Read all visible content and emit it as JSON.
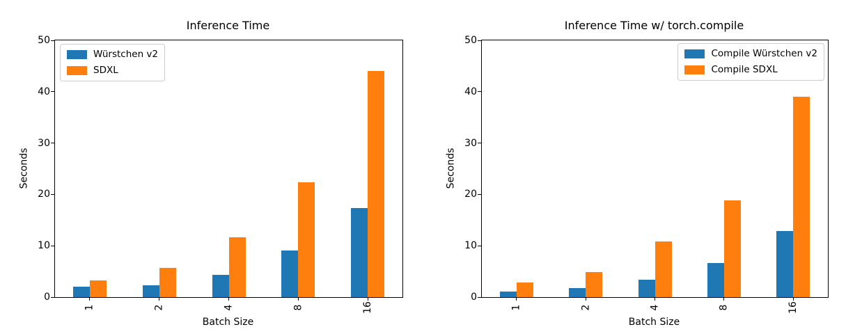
{
  "page": {
    "background": "#ffffff"
  },
  "chart_data": [
    {
      "type": "bar",
      "title": "Inference Time",
      "xlabel": "Batch Size",
      "ylabel": "Seconds",
      "categories": [
        "1",
        "2",
        "4",
        "8",
        "16"
      ],
      "series": [
        {
          "name": "Würstchen v2",
          "color": "#1f77b4",
          "values": [
            2.0,
            2.3,
            4.4,
            9.1,
            17.3
          ]
        },
        {
          "name": "SDXL",
          "color": "#ff7f0e",
          "values": [
            3.2,
            5.7,
            11.7,
            22.3,
            44.0
          ]
        }
      ],
      "ylim": [
        0,
        50
      ],
      "yticks": [
        0,
        10,
        20,
        30,
        40,
        50
      ],
      "xtick_rotation": 90,
      "grid": false,
      "legend_position": "upper-left"
    },
    {
      "type": "bar",
      "title": "Inference Time w/ torch.compile",
      "xlabel": "Batch Size",
      "ylabel": "Seconds",
      "categories": [
        "1",
        "2",
        "4",
        "8",
        "16"
      ],
      "series": [
        {
          "name": "Compile Würstchen v2",
          "color": "#1f77b4",
          "values": [
            1.1,
            1.8,
            3.4,
            6.7,
            12.9
          ]
        },
        {
          "name": "Compile SDXL",
          "color": "#ff7f0e",
          "values": [
            2.9,
            4.9,
            10.8,
            18.9,
            39.0
          ]
        }
      ],
      "ylim": [
        0,
        50
      ],
      "yticks": [
        0,
        10,
        20,
        30,
        40,
        50
      ],
      "xtick_rotation": 90,
      "grid": false,
      "legend_position": "upper-right"
    }
  ]
}
